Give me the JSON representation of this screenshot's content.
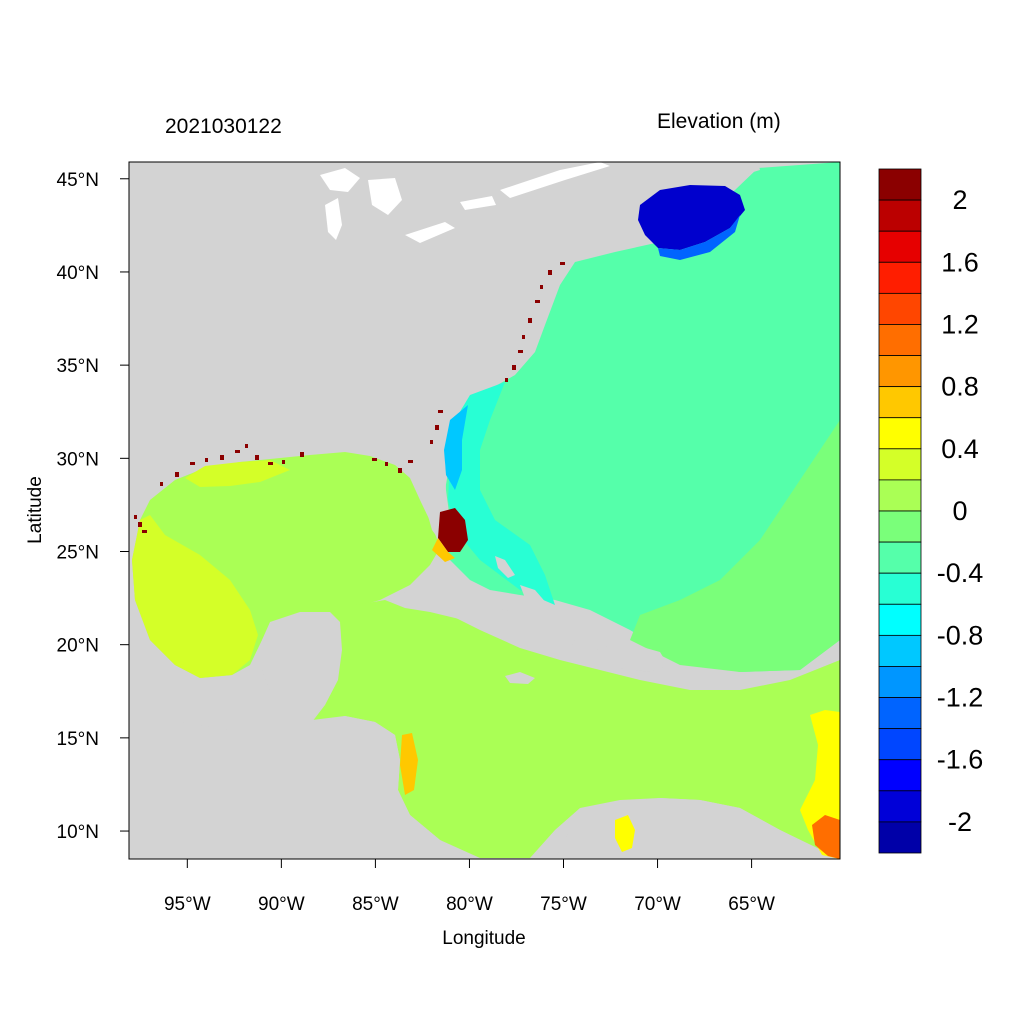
{
  "map": {
    "timestamp": "2021030122",
    "variable_label": "Elevation (m)",
    "x_axis_label": "Longitude",
    "y_axis_label": "Latitude",
    "lon_ticks": [
      "95°W",
      "90°W",
      "85°W",
      "80°W",
      "75°W",
      "70°W",
      "65°W"
    ],
    "lat_ticks": [
      "45°N",
      "40°N",
      "35°N",
      "30°N",
      "25°N",
      "20°N",
      "15°N",
      "10°N"
    ],
    "colors": {
      "land": "#d3d3d3",
      "water_baseline": "#55ffaa",
      "gulf_caribbean": "#aaff55",
      "high_surge": "#8b0000",
      "negative_surge": "#0000cd"
    }
  },
  "legend": {
    "labels": [
      "2",
      "1.6",
      "1.2",
      "0.8",
      "0.4",
      "0",
      "-0.4",
      "-0.8",
      "-1.2",
      "-1.6",
      "-2"
    ],
    "colors": [
      "#8b0000",
      "#bb0000",
      "#e60000",
      "#ff1e00",
      "#ff4600",
      "#ff6e00",
      "#ff9600",
      "#ffc800",
      "#ffff00",
      "#d4ff28",
      "#aaff55",
      "#7aff7a",
      "#55ffaa",
      "#28ffd4",
      "#00ffff",
      "#00c8ff",
      "#0096ff",
      "#0064ff",
      "#0046ff",
      "#0000ff",
      "#0000d8",
      "#0000a8"
    ]
  }
}
